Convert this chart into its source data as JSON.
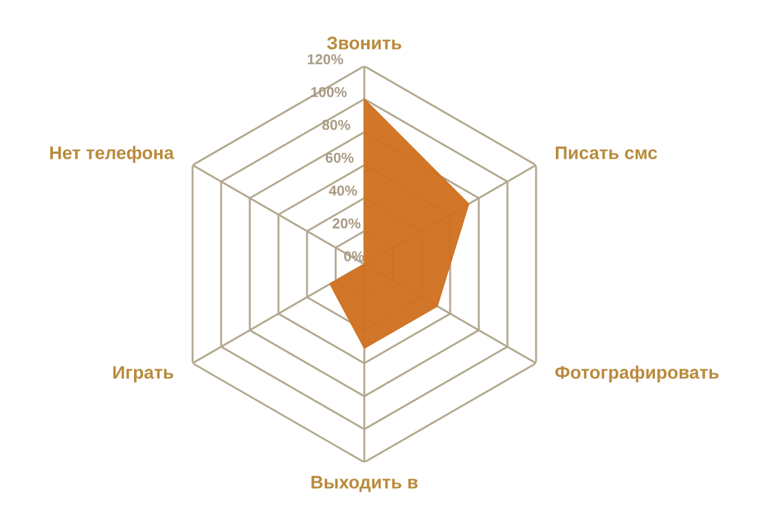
{
  "chart_data": {
    "type": "radar",
    "categories": [
      "Звонить",
      "Писать смс",
      "Фотографировать",
      "Выходить в",
      "Играть",
      "Нет телефона"
    ],
    "series": [
      {
        "color": "#d0701e",
        "values": [
          100,
          73,
          51,
          51,
          24,
          0
        ]
      }
    ],
    "ylim": [
      0,
      120
    ],
    "yticks": [
      {
        "value": 0,
        "label": "0%"
      },
      {
        "value": 20,
        "label": "20%"
      },
      {
        "value": 40,
        "label": "40%"
      },
      {
        "value": 60,
        "label": "60%"
      },
      {
        "value": 80,
        "label": "80%"
      },
      {
        "value": 100,
        "label": "100%"
      },
      {
        "value": 120,
        "label": "120%"
      }
    ],
    "grid": true
  }
}
